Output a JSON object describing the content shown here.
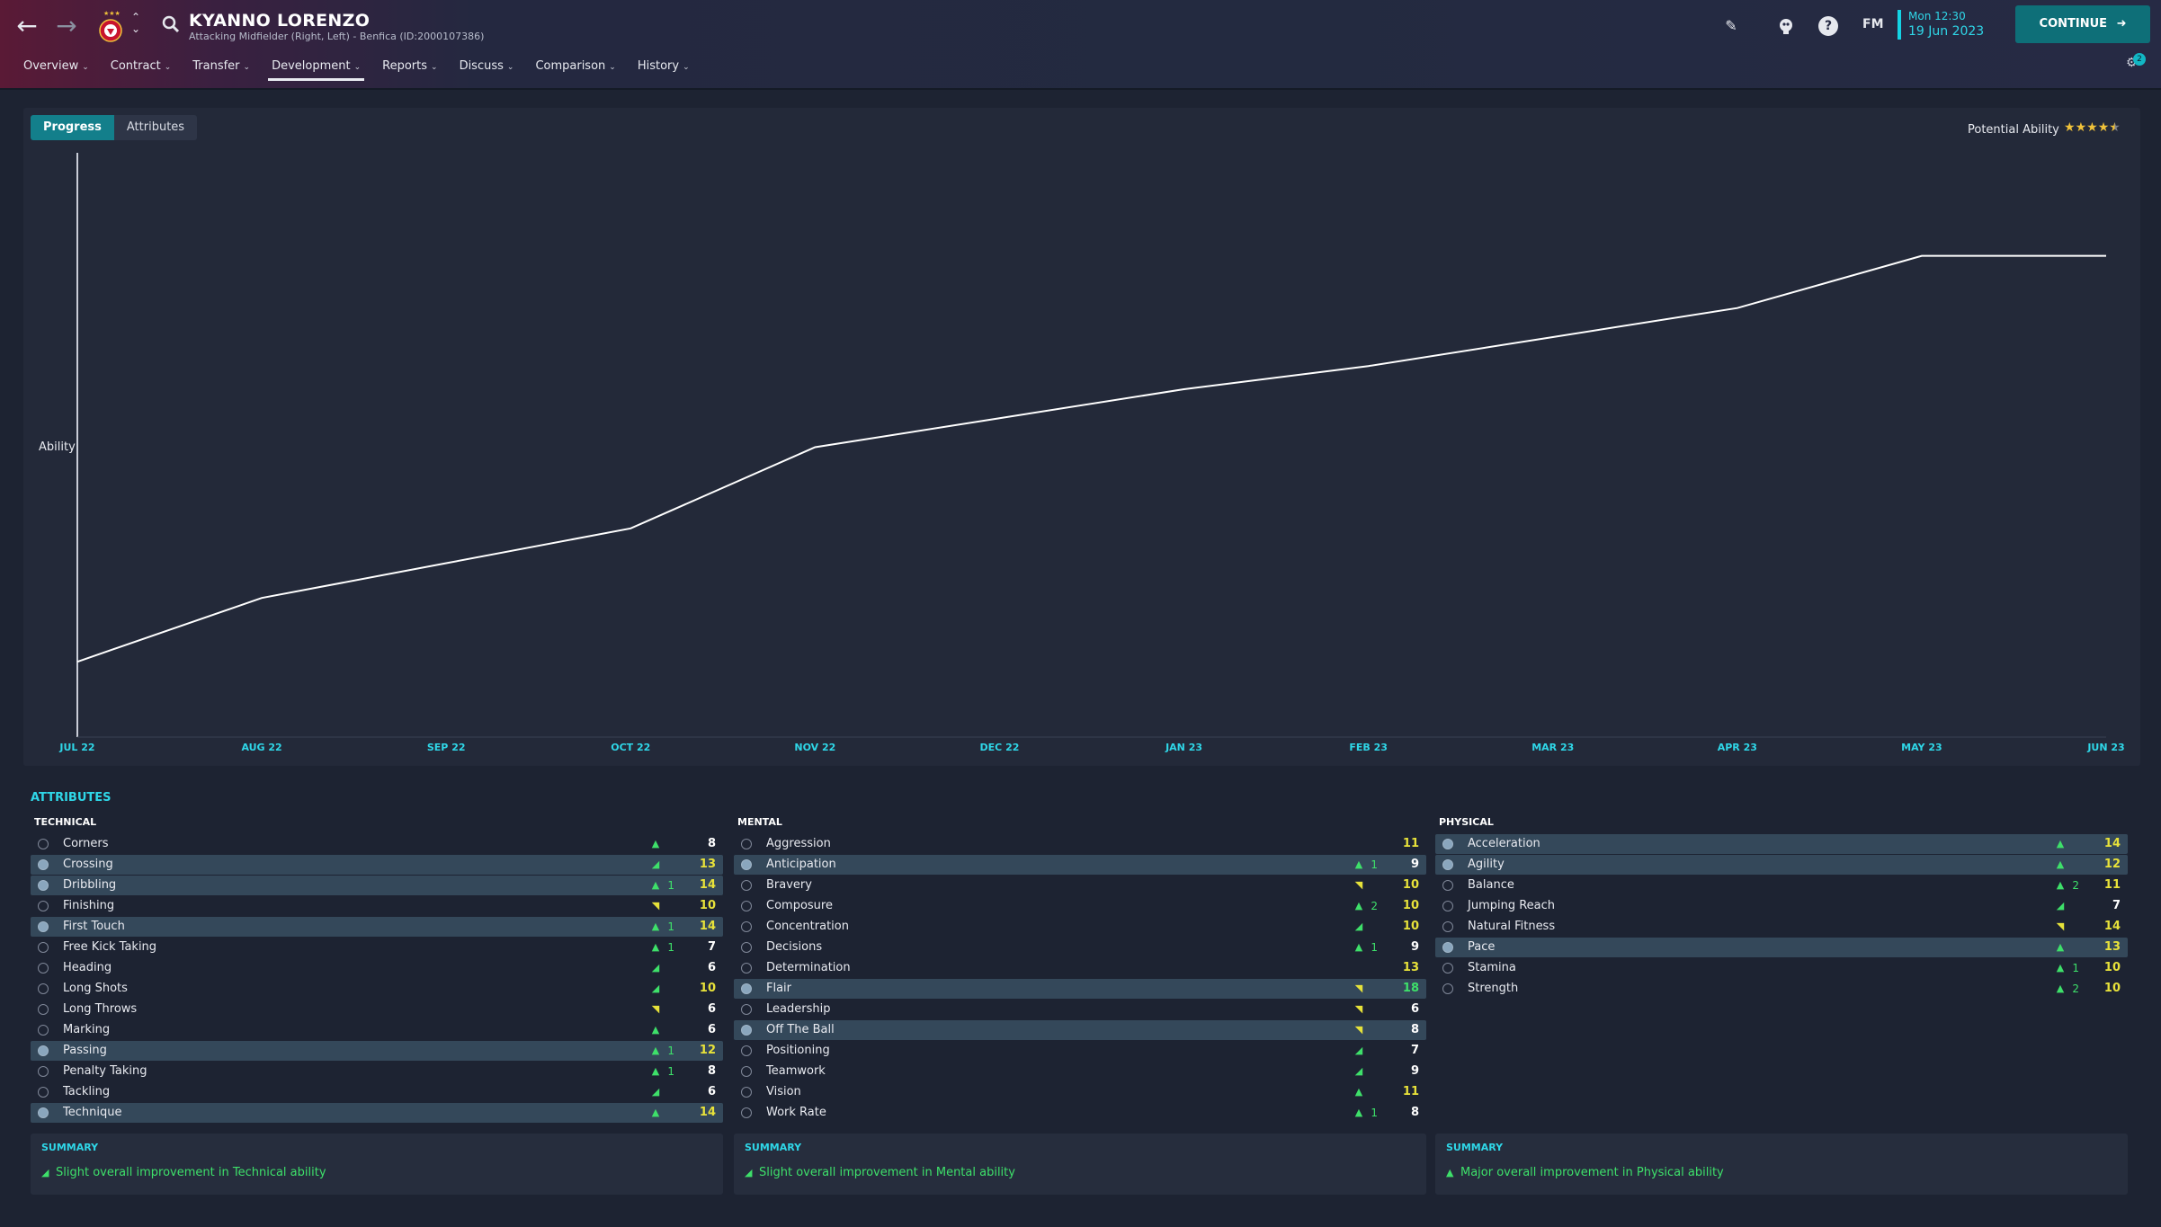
{
  "header": {
    "player_name": "KYANNO LORENZO",
    "player_sub": "Attacking Midfielder (Right, Left) - Benfica (ID:2000107386)",
    "tabs": [
      {
        "label": "Overview"
      },
      {
        "label": "Contract"
      },
      {
        "label": "Transfer"
      },
      {
        "label": "Development",
        "active": true
      },
      {
        "label": "Reports"
      },
      {
        "label": "Discuss"
      },
      {
        "label": "Comparison"
      },
      {
        "label": "History"
      }
    ],
    "fm_logo": "FM",
    "time": "Mon 12:30",
    "date": "19 Jun 2023",
    "continue_label": "CONTINUE",
    "notification_count": "2"
  },
  "progress": {
    "tabs": [
      "Progress",
      "Attributes"
    ],
    "active_tab": "Progress",
    "potential_label": "Potential Ability",
    "potential_stars": 4.5
  },
  "chart_data": {
    "type": "line",
    "ylabel": "Ability",
    "categories": [
      "JUL 22",
      "AUG 22",
      "SEP 22",
      "OCT 22",
      "NOV 22",
      "DEC 22",
      "JAN 23",
      "FEB 23",
      "MAR 23",
      "APR 23",
      "MAY 23",
      "JUN 23"
    ],
    "series": [
      {
        "values": [
          13,
          24,
          30,
          36,
          50,
          55,
          60,
          64,
          69,
          74,
          83,
          83
        ]
      }
    ],
    "ylim": [
      0,
      100
    ],
    "grid": false,
    "line_color": "#ffffff"
  },
  "attributes": {
    "title": "ATTRIBUTES",
    "columns": [
      {
        "title": "TECHNICAL",
        "rows": [
          {
            "name": "Corners",
            "arrow": "up",
            "delta": "",
            "value": "8",
            "hl": false
          },
          {
            "name": "Crossing",
            "arrow": "slight-up",
            "delta": "",
            "value": "13",
            "hl": true,
            "vcolor": "yellow"
          },
          {
            "name": "Dribbling",
            "arrow": "up",
            "delta": "1",
            "value": "14",
            "hl": true,
            "vcolor": "yellow"
          },
          {
            "name": "Finishing",
            "arrow": "slight-down",
            "delta": "",
            "value": "10",
            "hl": false,
            "vcolor": "yellow"
          },
          {
            "name": "First Touch",
            "arrow": "up",
            "delta": "1",
            "value": "14",
            "hl": true,
            "vcolor": "yellow"
          },
          {
            "name": "Free Kick Taking",
            "arrow": "up",
            "delta": "1",
            "value": "7",
            "hl": false
          },
          {
            "name": "Heading",
            "arrow": "slight-up",
            "delta": "",
            "value": "6",
            "hl": false
          },
          {
            "name": "Long Shots",
            "arrow": "slight-up",
            "delta": "",
            "value": "10",
            "hl": false,
            "vcolor": "yellow"
          },
          {
            "name": "Long Throws",
            "arrow": "slight-down",
            "delta": "",
            "value": "6",
            "hl": false
          },
          {
            "name": "Marking",
            "arrow": "up",
            "delta": "",
            "value": "6",
            "hl": false
          },
          {
            "name": "Passing",
            "arrow": "up",
            "delta": "1",
            "value": "12",
            "hl": true,
            "vcolor": "yellow"
          },
          {
            "name": "Penalty Taking",
            "arrow": "up",
            "delta": "1",
            "value": "8",
            "hl": false
          },
          {
            "name": "Tackling",
            "arrow": "slight-up",
            "delta": "",
            "value": "6",
            "hl": false
          },
          {
            "name": "Technique",
            "arrow": "up",
            "delta": "",
            "value": "14",
            "hl": true,
            "vcolor": "yellow"
          }
        ],
        "summary_title": "SUMMARY",
        "summary_text": "Slight overall improvement in Technical ability",
        "summary_arrow": "slight-up"
      },
      {
        "title": "MENTAL",
        "rows": [
          {
            "name": "Aggression",
            "arrow": "",
            "delta": "",
            "value": "11",
            "hl": false,
            "vcolor": "yellow"
          },
          {
            "name": "Anticipation",
            "arrow": "up",
            "delta": "1",
            "value": "9",
            "hl": true
          },
          {
            "name": "Bravery",
            "arrow": "slight-down",
            "delta": "",
            "value": "10",
            "hl": false,
            "vcolor": "yellow"
          },
          {
            "name": "Composure",
            "arrow": "up",
            "delta": "2",
            "value": "10",
            "hl": false,
            "vcolor": "yellow"
          },
          {
            "name": "Concentration",
            "arrow": "slight-up",
            "delta": "",
            "value": "10",
            "hl": false,
            "vcolor": "yellow"
          },
          {
            "name": "Decisions",
            "arrow": "up",
            "delta": "1",
            "value": "9",
            "hl": false
          },
          {
            "name": "Determination",
            "arrow": "",
            "delta": "",
            "value": "13",
            "hl": false,
            "vcolor": "yellow"
          },
          {
            "name": "Flair",
            "arrow": "slight-down",
            "delta": "",
            "value": "18",
            "hl": true,
            "vcolor": "green"
          },
          {
            "name": "Leadership",
            "arrow": "slight-down",
            "delta": "",
            "value": "6",
            "hl": false
          },
          {
            "name": "Off The Ball",
            "arrow": "slight-down",
            "delta": "",
            "value": "8",
            "hl": true
          },
          {
            "name": "Positioning",
            "arrow": "slight-up",
            "delta": "",
            "value": "7",
            "hl": false
          },
          {
            "name": "Teamwork",
            "arrow": "slight-up",
            "delta": "",
            "value": "9",
            "hl": false
          },
          {
            "name": "Vision",
            "arrow": "up",
            "delta": "",
            "value": "11",
            "hl": false,
            "vcolor": "yellow"
          },
          {
            "name": "Work Rate",
            "arrow": "up",
            "delta": "1",
            "value": "8",
            "hl": false
          }
        ],
        "summary_title": "SUMMARY",
        "summary_text": "Slight overall improvement in Mental ability",
        "summary_arrow": "slight-up"
      },
      {
        "title": "PHYSICAL",
        "rows": [
          {
            "name": "Acceleration",
            "arrow": "up",
            "delta": "",
            "value": "14",
            "hl": true,
            "vcolor": "yellow"
          },
          {
            "name": "Agility",
            "arrow": "up",
            "delta": "",
            "value": "12",
            "hl": true,
            "vcolor": "yellow"
          },
          {
            "name": "Balance",
            "arrow": "up",
            "delta": "2",
            "value": "11",
            "hl": false,
            "vcolor": "yellow"
          },
          {
            "name": "Jumping Reach",
            "arrow": "slight-up",
            "delta": "",
            "value": "7",
            "hl": false
          },
          {
            "name": "Natural Fitness",
            "arrow": "slight-down",
            "delta": "",
            "value": "14",
            "hl": false,
            "vcolor": "yellow"
          },
          {
            "name": "Pace",
            "arrow": "up",
            "delta": "",
            "value": "13",
            "hl": true,
            "vcolor": "yellow"
          },
          {
            "name": "Stamina",
            "arrow": "up",
            "delta": "1",
            "value": "10",
            "hl": false,
            "vcolor": "yellow"
          },
          {
            "name": "Strength",
            "arrow": "up",
            "delta": "2",
            "value": "10",
            "hl": false,
            "vcolor": "yellow"
          }
        ],
        "summary_title": "SUMMARY",
        "summary_text": "Major overall improvement in Physical ability",
        "summary_arrow": "up"
      }
    ]
  }
}
